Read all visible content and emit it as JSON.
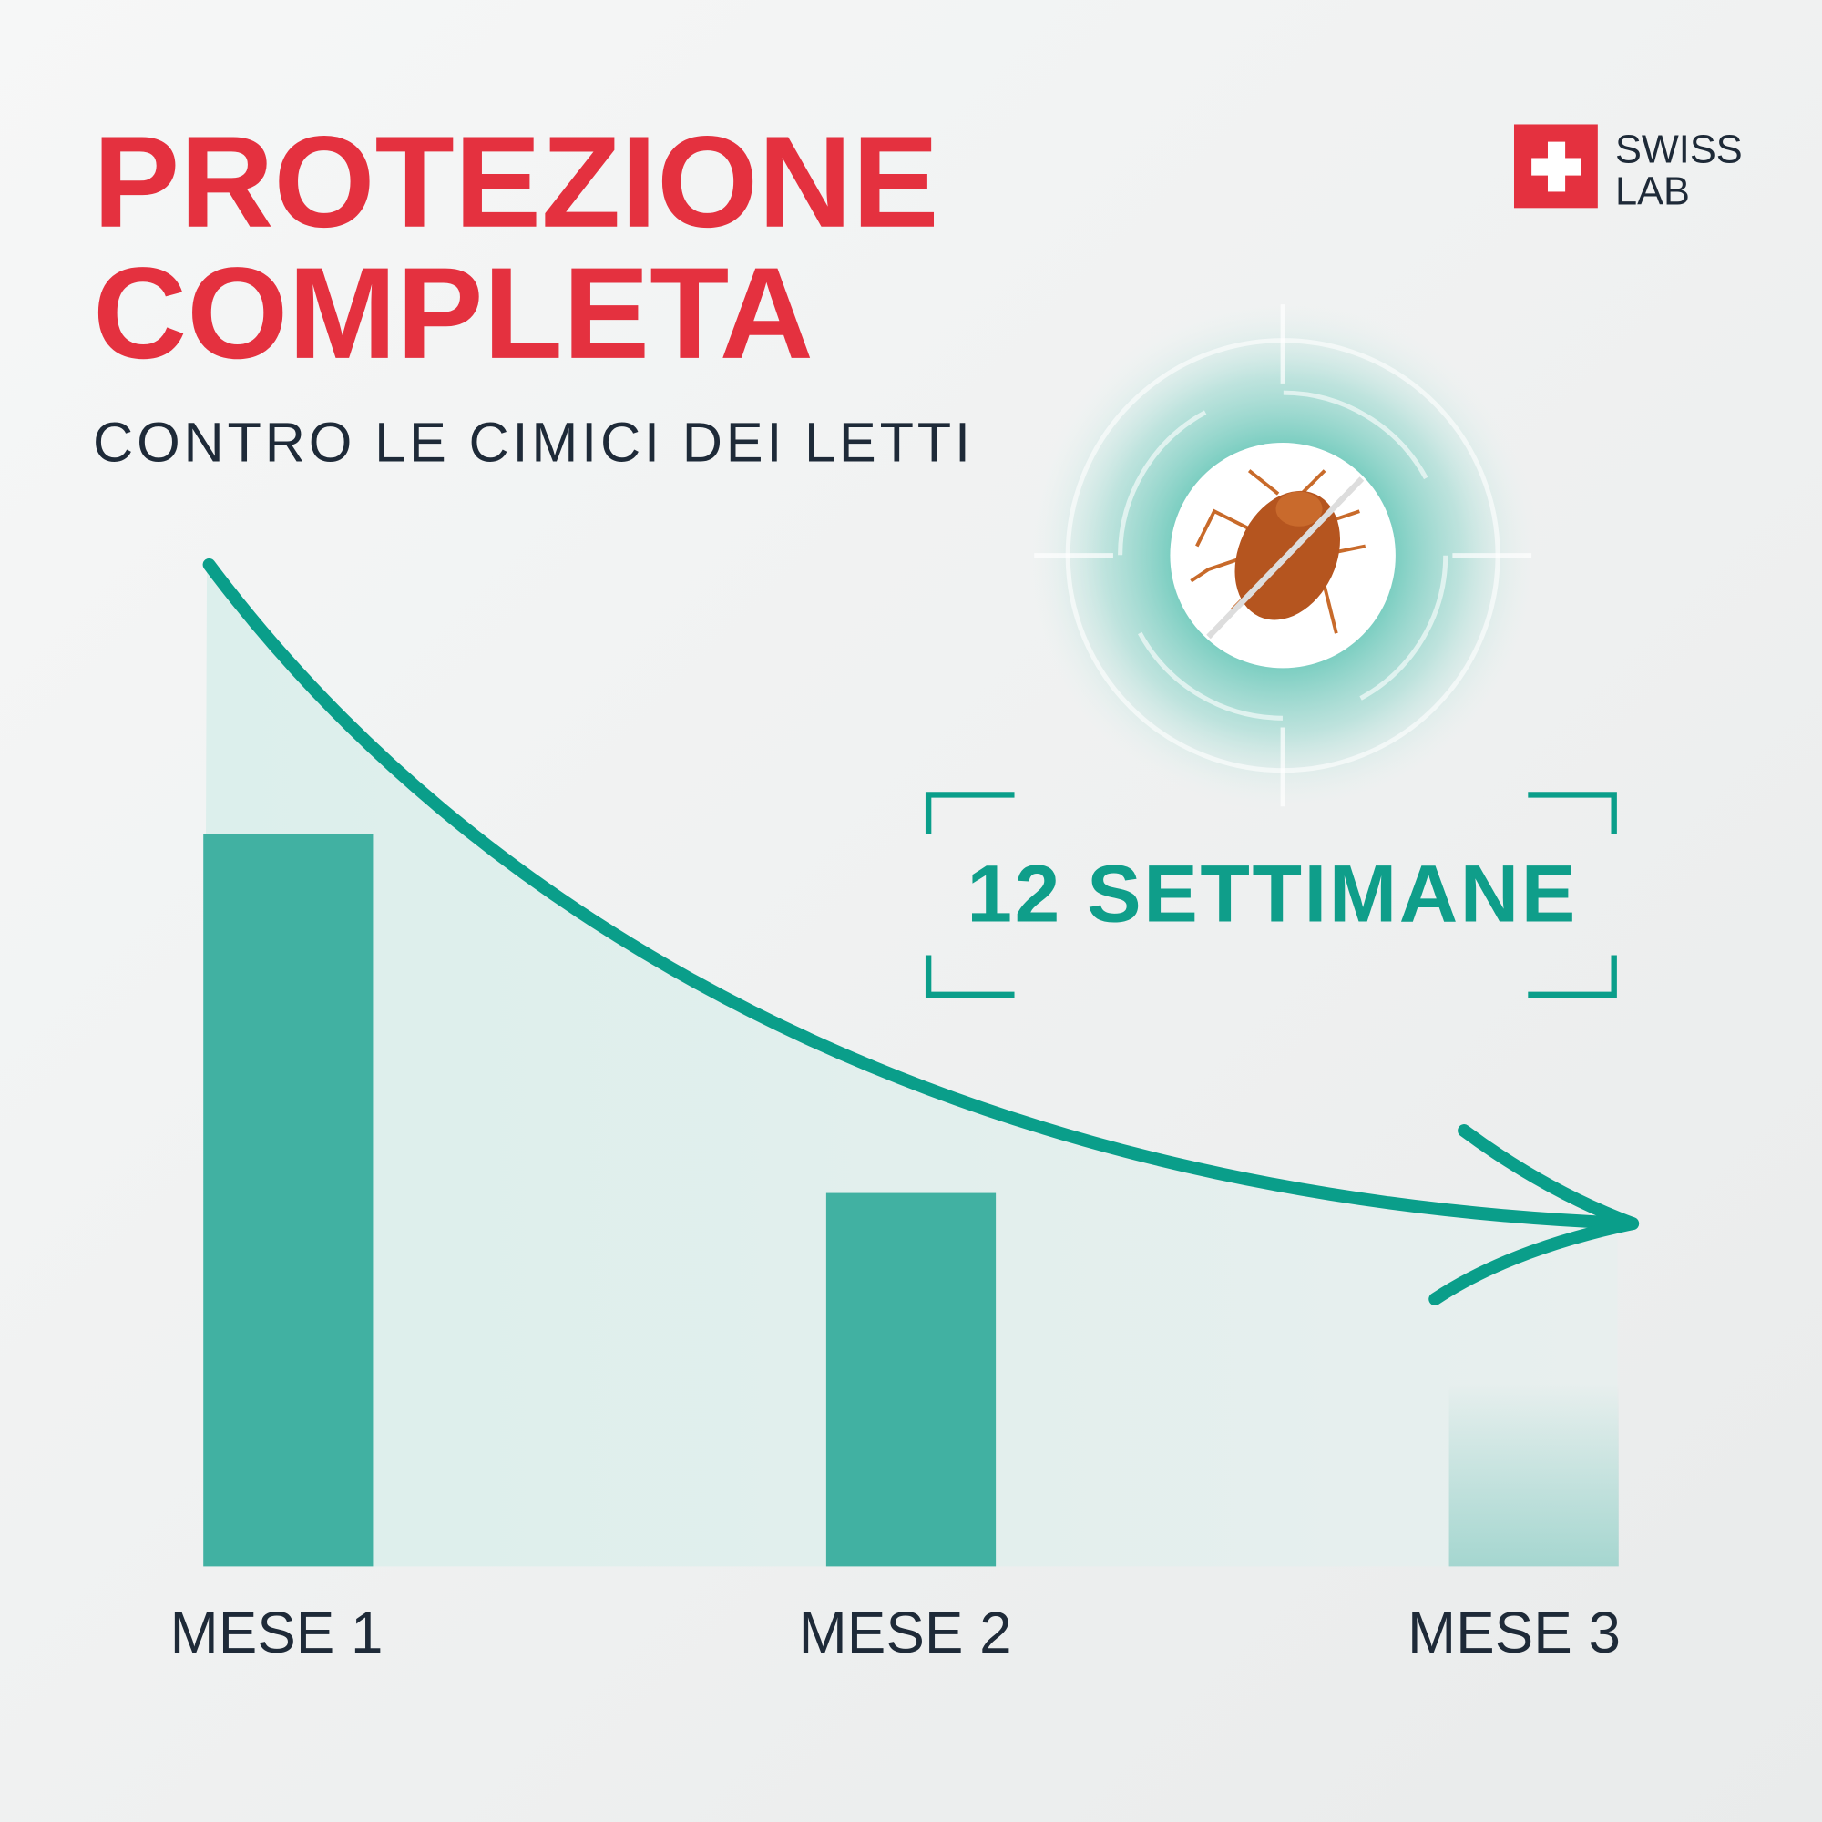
{
  "chart_data": {
    "type": "bar",
    "title": [
      "PROTEZIONE",
      "COMPLETA"
    ],
    "subtitle": "CONTRO LE CIMICI DEI LETTI",
    "annotation": "12 SETTIMANE",
    "brand": [
      "SWISS",
      "LAB"
    ],
    "categories": [
      "MESE 1",
      "MESE 2",
      "MESE 3"
    ],
    "values": [
      100,
      51,
      25
    ],
    "color": "#41b1a2",
    "ylim": [
      0,
      100
    ]
  }
}
